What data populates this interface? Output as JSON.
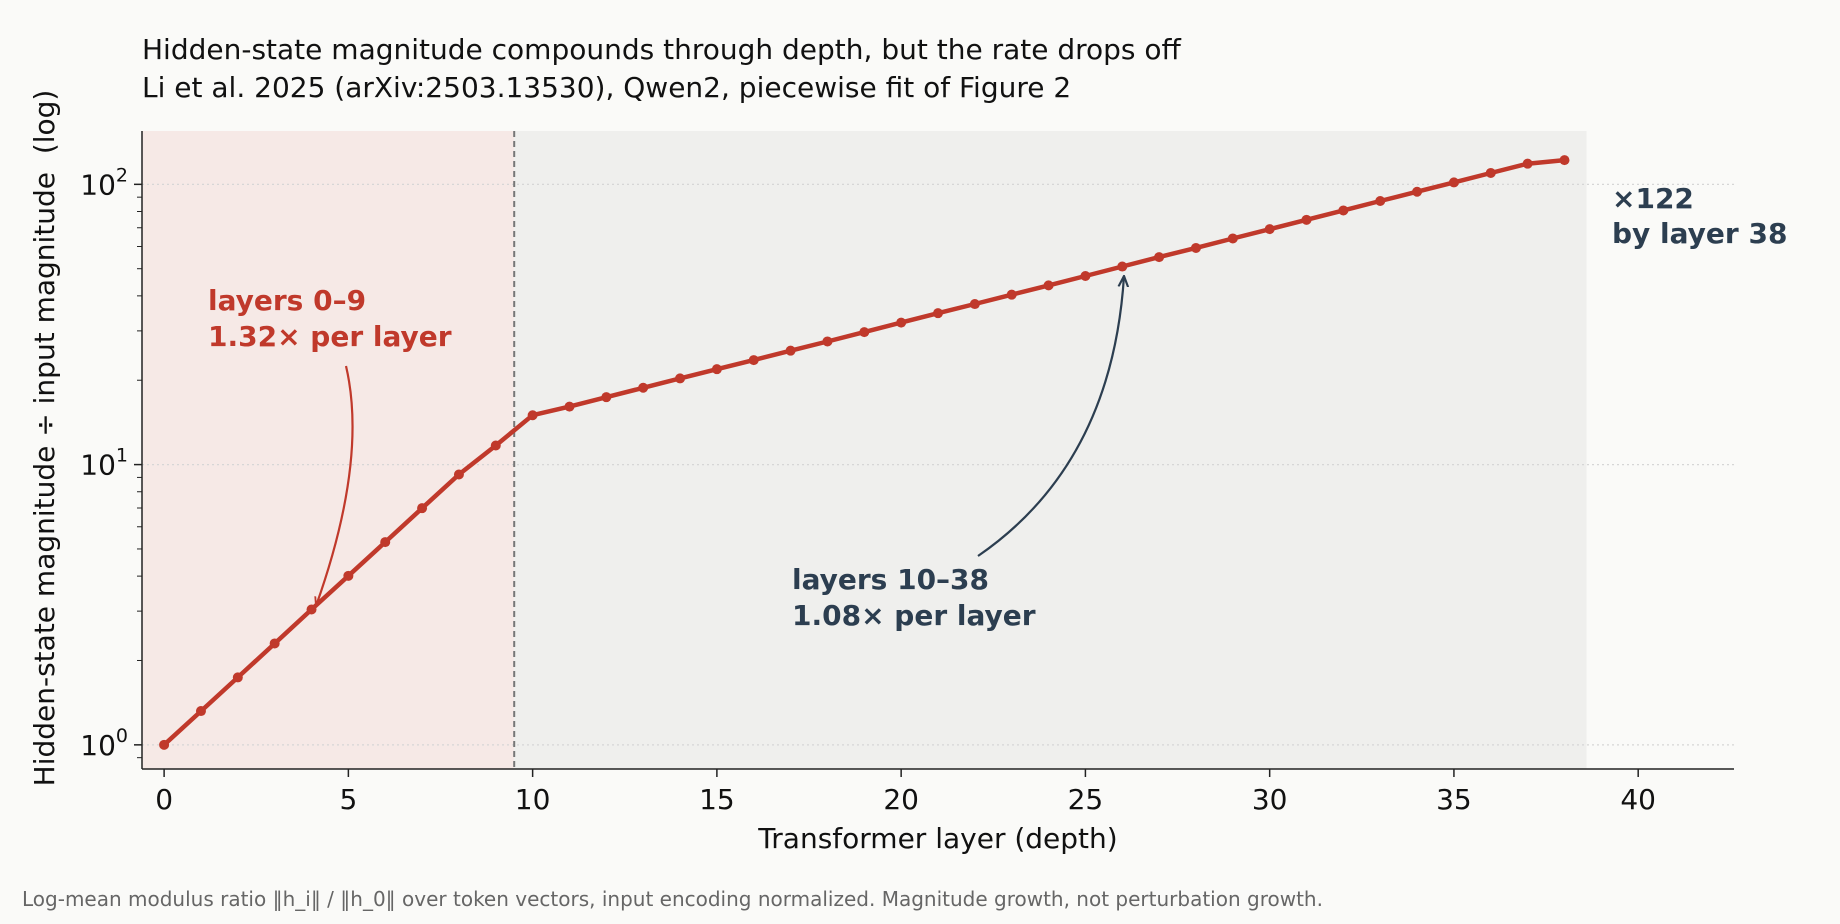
{
  "chart_data": {
    "type": "line",
    "title": "Hidden-state magnitude compounds through depth, but the rate drops off",
    "subtitle": "Li et al. 2025 (arXiv:2503.13530), Qwen2, piecewise fit of Figure 2",
    "xlabel": "Transformer layer (depth)",
    "ylabel": "Hidden-state magnitude ÷ input magnitude  (log)",
    "xlim": [
      -0.6,
      42.6
    ],
    "ylim": [
      0.82,
      155
    ],
    "y_scale": "log",
    "x_ticks": [
      0,
      5,
      10,
      15,
      20,
      25,
      30,
      35,
      40
    ],
    "y_ticks": [
      {
        "value": 1,
        "base": "10",
        "exp": "0"
      },
      {
        "value": 10,
        "base": "10",
        "exp": "1"
      },
      {
        "value": 100,
        "base": "10",
        "exp": "2"
      }
    ],
    "grid": "horizontal dotted at major y ticks",
    "color": "#c0392b",
    "regions": [
      {
        "x_start": -0.6,
        "x_end": 9.5,
        "color": "#f6e9e6"
      },
      {
        "x_start": 9.5,
        "x_end": 38.6,
        "color": "#efefed"
      }
    ],
    "divider_x": 9.5,
    "series": [
      {
        "x": [
          0,
          1,
          2,
          3,
          4,
          5,
          6,
          7,
          8,
          9,
          10,
          11,
          12,
          13,
          14,
          15,
          16,
          17,
          18,
          19,
          20,
          21,
          22,
          23,
          24,
          25,
          26,
          27,
          28,
          29,
          30,
          31,
          32,
          33,
          34,
          35,
          36,
          37,
          38
        ],
        "values": [
          1.0,
          1.32,
          1.74,
          2.3,
          3.04,
          4.01,
          5.29,
          6.99,
          9.22,
          11.7,
          15.0,
          16.1,
          17.4,
          18.8,
          20.3,
          21.9,
          23.6,
          25.5,
          27.5,
          29.7,
          32.1,
          34.7,
          37.4,
          40.4,
          43.6,
          47.1,
          50.9,
          55.0,
          59.3,
          64.1,
          69.2,
          74.7,
          80.7,
          87.2,
          94.1,
          101.6,
          109.8,
          118.5,
          122.0
        ]
      }
    ],
    "annotations": {
      "early": {
        "line1": "layers 0–9",
        "line2": "1.32× per layer",
        "color": "#c0392b",
        "target_x": 4,
        "target_y": 3.04
      },
      "late": {
        "line1": "layers 10–38",
        "line2": "1.08× per layer",
        "color": "#2c3e50",
        "target_x": 26,
        "target_y": 50.9
      },
      "end": {
        "line1": "×122",
        "line2": "by layer 38",
        "color": "#2c3e50"
      }
    }
  },
  "footnote": "Log-mean modulus ratio ‖h_i‖ / ‖h_0‖ over token vectors, input encoding normalized. Magnitude growth, not perturbation growth."
}
